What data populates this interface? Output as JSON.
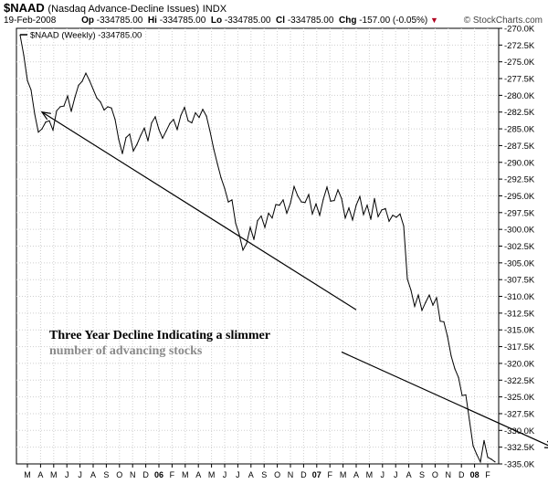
{
  "header": {
    "symbol": "$NAAD",
    "name": "(Nasdaq Advance-Decline Issues)",
    "exchange": "INDX",
    "date": "19-Feb-2008",
    "op_label": "Op",
    "op_value": "-334785.00",
    "hi_label": "Hi",
    "hi_value": "-334785.00",
    "lo_label": "Lo",
    "lo_value": "-334785.00",
    "cl_label": "Cl",
    "cl_value": "-334785.00",
    "chg_label": "Chg",
    "chg_value": "-157.00 (-0.05%)",
    "chg_arrow": "▼",
    "brand": "© StockCharts.com"
  },
  "annotations": {
    "line1": "Three Year Decline Indicating a slimmer",
    "line2": "number of advancing stocks"
  },
  "colors": {
    "line": "#000000",
    "grid": "#cfcfcf",
    "axis": "#000000",
    "arrow": "#000000",
    "down_arrow": "#b00020"
  },
  "chart_data": {
    "type": "line",
    "legend": "$NAAD (Weekly) -334785.00",
    "legend_position": "top-left",
    "grid": true,
    "y_axis_side": "right",
    "ylim": [
      -335000,
      -270000
    ],
    "yticks": [
      "-270.0K",
      "-272.5K",
      "-275.0K",
      "-277.5K",
      "-280.0K",
      "-282.5K",
      "-285.0K",
      "-287.5K",
      "-290.0K",
      "-292.5K",
      "-295.0K",
      "-297.5K",
      "-300.0K",
      "-302.5K",
      "-305.0K",
      "-307.5K",
      "-310.0K",
      "-312.5K",
      "-315.0K",
      "-317.5K",
      "-320.0K",
      "-322.5K",
      "-325.0K",
      "-327.5K",
      "-330.0K",
      "-332.5K",
      "-335.0K"
    ],
    "xticks": [
      "M",
      "A",
      "M",
      "J",
      "J",
      "A",
      "S",
      "O",
      "N",
      "D",
      "06",
      "F",
      "M",
      "A",
      "M",
      "J",
      "J",
      "A",
      "S",
      "O",
      "N",
      "D",
      "07",
      "F",
      "M",
      "A",
      "M",
      "J",
      "J",
      "A",
      "S",
      "O",
      "N",
      "D",
      "08",
      "F"
    ],
    "year_ticks": [
      "06",
      "07",
      "08"
    ],
    "series": [
      {
        "values": [
          -271000,
          -274000,
          -277800,
          -279200,
          -282800,
          -285500,
          -285000,
          -284000,
          -283800,
          -285200,
          -282300,
          -281700,
          -281600,
          -280100,
          -282400,
          -280300,
          -278500,
          -277900,
          -276700,
          -277800,
          -279100,
          -280400,
          -281000,
          -282200,
          -281700,
          -281900,
          -283600,
          -286600,
          -288700,
          -286300,
          -285800,
          -288300,
          -287300,
          -286000,
          -284900,
          -286800,
          -284100,
          -283200,
          -285100,
          -286400,
          -285300,
          -284200,
          -283600,
          -285100,
          -283000,
          -281800,
          -283800,
          -284100,
          -282600,
          -283300,
          -282100,
          -283100,
          -285400,
          -288000,
          -290200,
          -292300,
          -293900,
          -295900,
          -295600,
          -299100,
          -300800,
          -303100,
          -302100,
          -299700,
          -301500,
          -298700,
          -298000,
          -299700,
          -297600,
          -298300,
          -296300,
          -296400,
          -295600,
          -297600,
          -296100,
          -293600,
          -295000,
          -295900,
          -296000,
          -294800,
          -297700,
          -296200,
          -297900,
          -295500,
          -293700,
          -295800,
          -295700,
          -294100,
          -295400,
          -298300,
          -296800,
          -298600,
          -296400,
          -295100,
          -297800,
          -296400,
          -298500,
          -295400,
          -298100,
          -297100,
          -296900,
          -298800,
          -297900,
          -298200,
          -297700,
          -299500,
          -307400,
          -309100,
          -311500,
          -309800,
          -312100,
          -310900,
          -309800,
          -311300,
          -310200,
          -313700,
          -313800,
          -316000,
          -318900,
          -320800,
          -322100,
          -324800,
          -324700,
          -328500,
          -332300,
          -333600,
          -334700,
          -331500,
          -334000,
          -334300,
          -334700
        ]
      }
    ],
    "arrows": [
      {
        "from": [
          92,
          -312000
        ],
        "to": [
          6,
          -282500
        ]
      },
      {
        "from": [
          88,
          -318300
        ],
        "to": [
          146,
          -332600
        ]
      }
    ]
  }
}
